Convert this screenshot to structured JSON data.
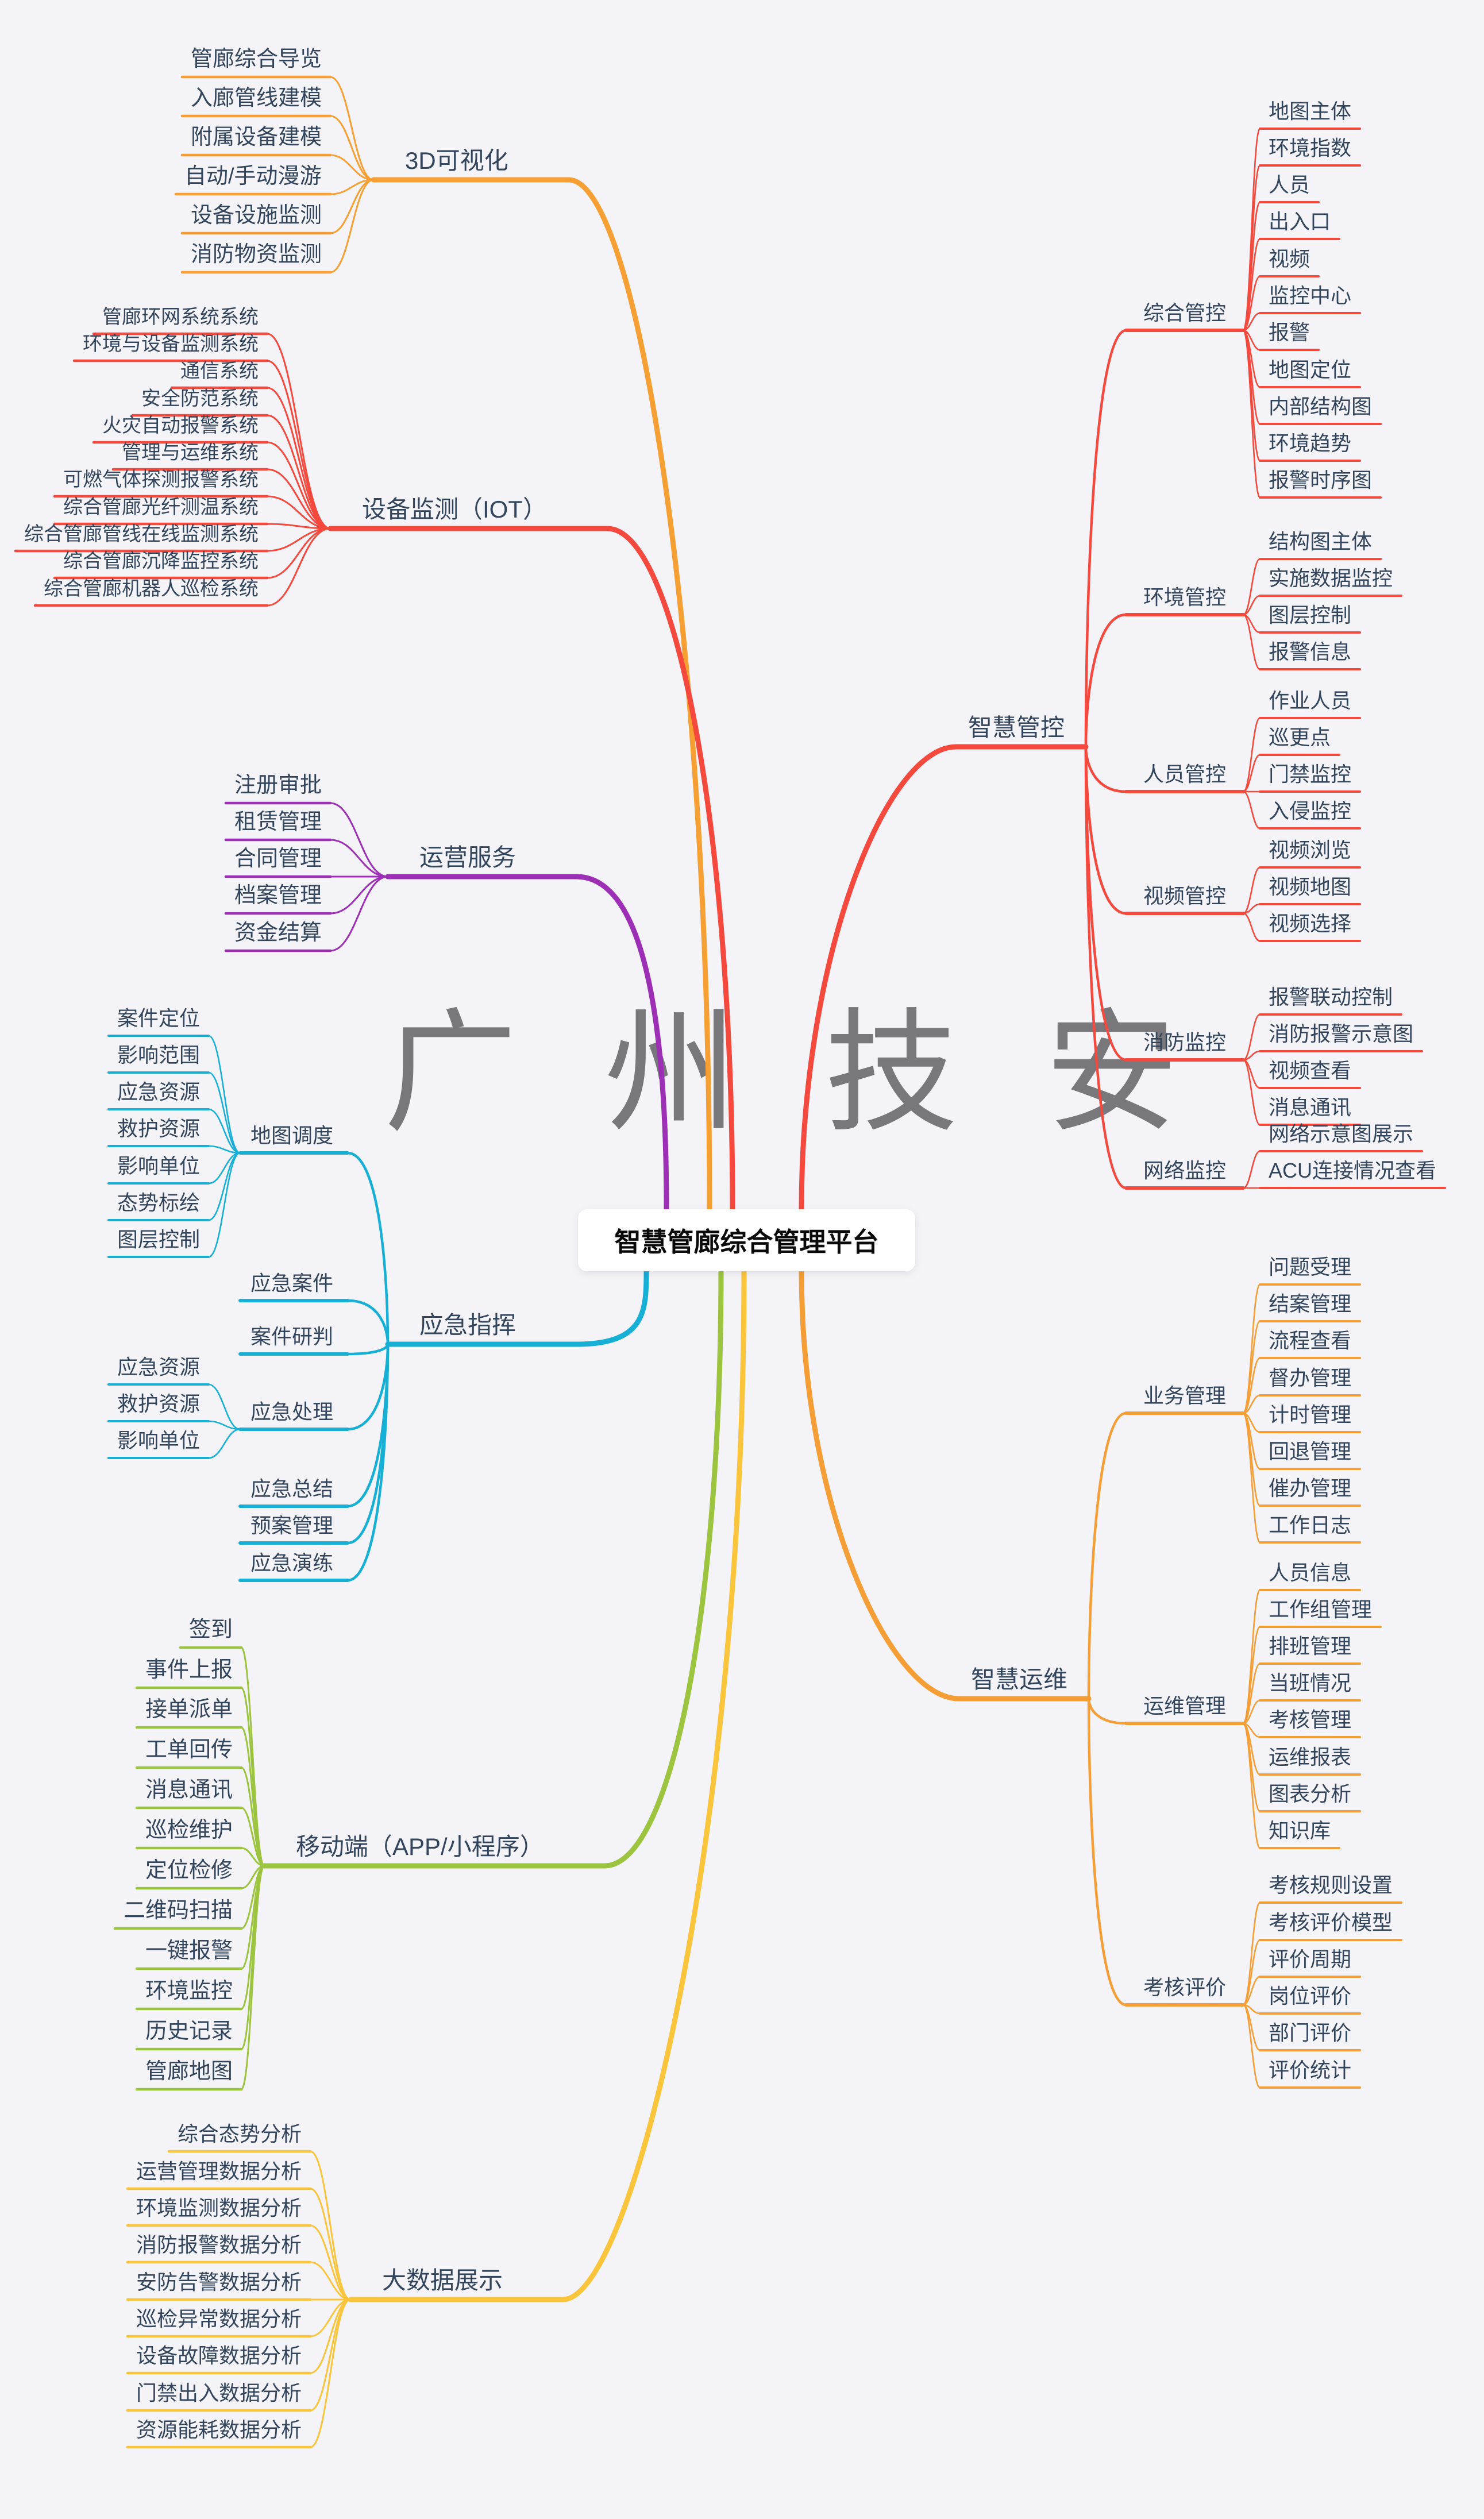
{
  "watermark": {
    "text": "广 州 技 安"
  },
  "mindmap": {
    "root": {
      "label": "智慧管廊综合管理平台"
    },
    "colors": {
      "orange": "#F6A033",
      "red": "#F4493C",
      "purple": "#9C2FB5",
      "cyan": "#16AFD6",
      "green": "#9CC43F",
      "yellow": "#FAC43B",
      "deep_orange": "#F59E35",
      "text": "#33455c",
      "background": "#f4f4f8",
      "root_bg": "#ffffff"
    },
    "branches": [
      {
        "label": "3D可视化",
        "color": "#F6A033",
        "side": "left",
        "children": [
          {
            "label": "管廊综合导览"
          },
          {
            "label": "入廊管线建模"
          },
          {
            "label": "附属设备建模"
          },
          {
            "label": "自动/手动漫游"
          },
          {
            "label": "设备设施监测"
          },
          {
            "label": "消防物资监测"
          }
        ]
      },
      {
        "label": "设备监测（IOT）",
        "color": "#F4493C",
        "side": "left",
        "children": [
          {
            "label": "管廊环网系统系统"
          },
          {
            "label": "环境与设备监测系统"
          },
          {
            "label": "通信系统"
          },
          {
            "label": "安全防范系统"
          },
          {
            "label": "火灾自动报警系统"
          },
          {
            "label": "管理与运维系统"
          },
          {
            "label": "可燃气体探测报警系统"
          },
          {
            "label": "综合管廊光纤测温系统"
          },
          {
            "label": "综合管廊管线在线监测系统"
          },
          {
            "label": "综合管廊沉降监控系统"
          },
          {
            "label": "综合管廊机器人巡检系统"
          }
        ]
      },
      {
        "label": "运营服务",
        "color": "#9C2FB5",
        "side": "left",
        "children": [
          {
            "label": "注册审批"
          },
          {
            "label": "租赁管理"
          },
          {
            "label": "合同管理"
          },
          {
            "label": "档案管理"
          },
          {
            "label": "资金结算"
          }
        ]
      },
      {
        "label": "应急指挥",
        "color": "#16AFD6",
        "side": "left",
        "children": [
          {
            "label": "地图调度",
            "children": [
              {
                "label": "案件定位"
              },
              {
                "label": "影响范围"
              },
              {
                "label": "应急资源"
              },
              {
                "label": "救护资源"
              },
              {
                "label": "影响单位"
              },
              {
                "label": "态势标绘"
              },
              {
                "label": "图层控制"
              }
            ]
          },
          {
            "label": "应急案件"
          },
          {
            "label": "案件研判"
          },
          {
            "label": "应急处理",
            "children": [
              {
                "label": "应急资源"
              },
              {
                "label": "救护资源"
              },
              {
                "label": "影响单位"
              }
            ]
          },
          {
            "label": "应急总结"
          },
          {
            "label": "预案管理"
          },
          {
            "label": "应急演练"
          }
        ]
      },
      {
        "label": "移动端（APP/小程序）",
        "color": "#9CC43F",
        "side": "left",
        "children": [
          {
            "label": "签到"
          },
          {
            "label": "事件上报"
          },
          {
            "label": "接单派单"
          },
          {
            "label": "工单回传"
          },
          {
            "label": "消息通讯"
          },
          {
            "label": "巡检维护"
          },
          {
            "label": "定位检修"
          },
          {
            "label": "二维码扫描"
          },
          {
            "label": "一键报警"
          },
          {
            "label": "环境监控"
          },
          {
            "label": "历史记录"
          },
          {
            "label": "管廊地图"
          }
        ]
      },
      {
        "label": "大数据展示",
        "color": "#FAC43B",
        "side": "left",
        "children": [
          {
            "label": "综合态势分析"
          },
          {
            "label": "运营管理数据分析"
          },
          {
            "label": "环境监测数据分析"
          },
          {
            "label": "消防报警数据分析"
          },
          {
            "label": "安防告警数据分析"
          },
          {
            "label": "巡检异常数据分析"
          },
          {
            "label": "设备故障数据分析"
          },
          {
            "label": "门禁出入数据分析"
          },
          {
            "label": "资源能耗数据分析"
          }
        ]
      },
      {
        "label": "智慧管控",
        "color": "#F4493C",
        "side": "right",
        "children": [
          {
            "label": "综合管控",
            "children": [
              {
                "label": "地图主体"
              },
              {
                "label": "环境指数"
              },
              {
                "label": "人员"
              },
              {
                "label": "出入口"
              },
              {
                "label": "视频"
              },
              {
                "label": "监控中心"
              },
              {
                "label": "报警"
              },
              {
                "label": "地图定位"
              },
              {
                "label": "内部结构图"
              },
              {
                "label": "环境趋势"
              },
              {
                "label": "报警时序图"
              }
            ]
          },
          {
            "label": "环境管控",
            "children": [
              {
                "label": "结构图主体"
              },
              {
                "label": "实施数据监控"
              },
              {
                "label": "图层控制"
              },
              {
                "label": "报警信息"
              }
            ]
          },
          {
            "label": "人员管控",
            "children": [
              {
                "label": "作业人员"
              },
              {
                "label": "巡更点"
              },
              {
                "label": "门禁监控"
              },
              {
                "label": "入侵监控"
              }
            ]
          },
          {
            "label": "视频管控",
            "children": [
              {
                "label": "视频浏览"
              },
              {
                "label": "视频地图"
              },
              {
                "label": "视频选择"
              }
            ]
          },
          {
            "label": "消防监控",
            "children": [
              {
                "label": "报警联动控制"
              },
              {
                "label": "消防报警示意图"
              },
              {
                "label": "视频查看"
              },
              {
                "label": "消息通讯"
              }
            ]
          },
          {
            "label": "网络监控",
            "children": [
              {
                "label": "网络示意图展示"
              },
              {
                "label": "ACU连接情况查看"
              }
            ]
          }
        ]
      },
      {
        "label": "智慧运维",
        "color": "#F59E35",
        "side": "right",
        "children": [
          {
            "label": "业务管理",
            "children": [
              {
                "label": "问题受理"
              },
              {
                "label": "结案管理"
              },
              {
                "label": "流程查看"
              },
              {
                "label": "督办管理"
              },
              {
                "label": "计时管理"
              },
              {
                "label": "回退管理"
              },
              {
                "label": "催办管理"
              },
              {
                "label": "工作日志"
              }
            ]
          },
          {
            "label": "运维管理",
            "children": [
              {
                "label": "人员信息"
              },
              {
                "label": "工作组管理"
              },
              {
                "label": "排班管理"
              },
              {
                "label": "当班情况"
              },
              {
                "label": "考核管理"
              },
              {
                "label": "运维报表"
              },
              {
                "label": "图表分析"
              },
              {
                "label": "知识库"
              }
            ]
          },
          {
            "label": "考核评价",
            "children": [
              {
                "label": "考核规则设置"
              },
              {
                "label": "考核评价模型"
              },
              {
                "label": "评价周期"
              },
              {
                "label": "岗位评价"
              },
              {
                "label": "部门评价"
              },
              {
                "label": "评价统计"
              }
            ]
          }
        ]
      }
    ]
  }
}
